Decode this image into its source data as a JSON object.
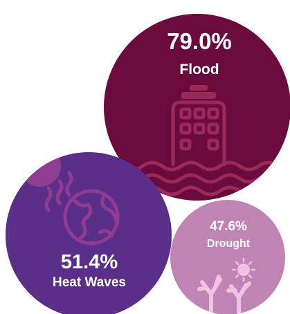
{
  "chart_data": {
    "type": "bubble",
    "title": "",
    "items": [
      {
        "label": "Flood",
        "value_label": "79.0%",
        "value": 79.0,
        "color": "#6b0a3c",
        "icon": "flooded-building-icon"
      },
      {
        "label": "Heat Waves",
        "value_label": "51.4%",
        "value": 51.4,
        "color": "#5b2e8a",
        "icon": "globe-sun-heat-icon"
      },
      {
        "label": "Drought",
        "value_label": "47.6%",
        "value": 47.6,
        "color": "#c084b4",
        "icon": "dry-trees-sun-icon"
      }
    ]
  }
}
